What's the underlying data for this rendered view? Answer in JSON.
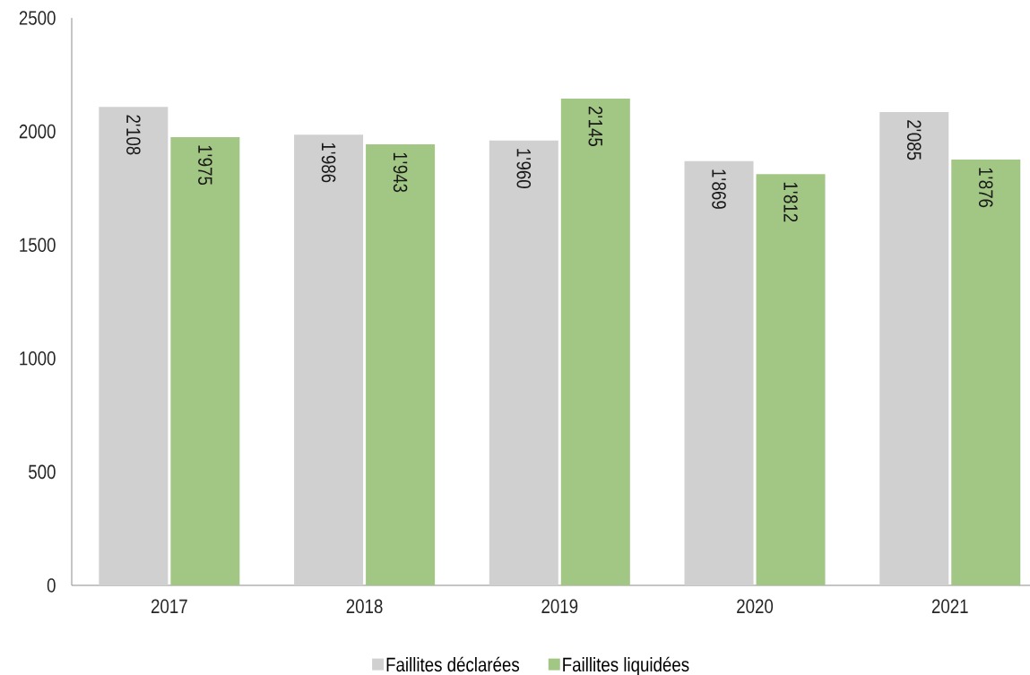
{
  "chart_data": {
    "type": "bar",
    "categories": [
      "2017",
      "2018",
      "2019",
      "2020",
      "2021"
    ],
    "series": [
      {
        "name": "Faillites déclarées",
        "color": "#d0d0d0",
        "values": [
          2108,
          1986,
          1960,
          1869,
          2085
        ],
        "value_labels": [
          "2'108",
          "1'986",
          "1'960",
          "1'869",
          "2'085"
        ]
      },
      {
        "name": "Faillites liquidées",
        "color": "#a2c785",
        "values": [
          1975,
          1943,
          2145,
          1812,
          1876
        ],
        "value_labels": [
          "1'975",
          "1'943",
          "2'145",
          "1'812",
          "1'876"
        ]
      }
    ],
    "ylim": [
      0,
      2500
    ],
    "yticks": [
      0,
      500,
      1000,
      1500,
      2000,
      2500
    ],
    "legend": "bottom"
  }
}
